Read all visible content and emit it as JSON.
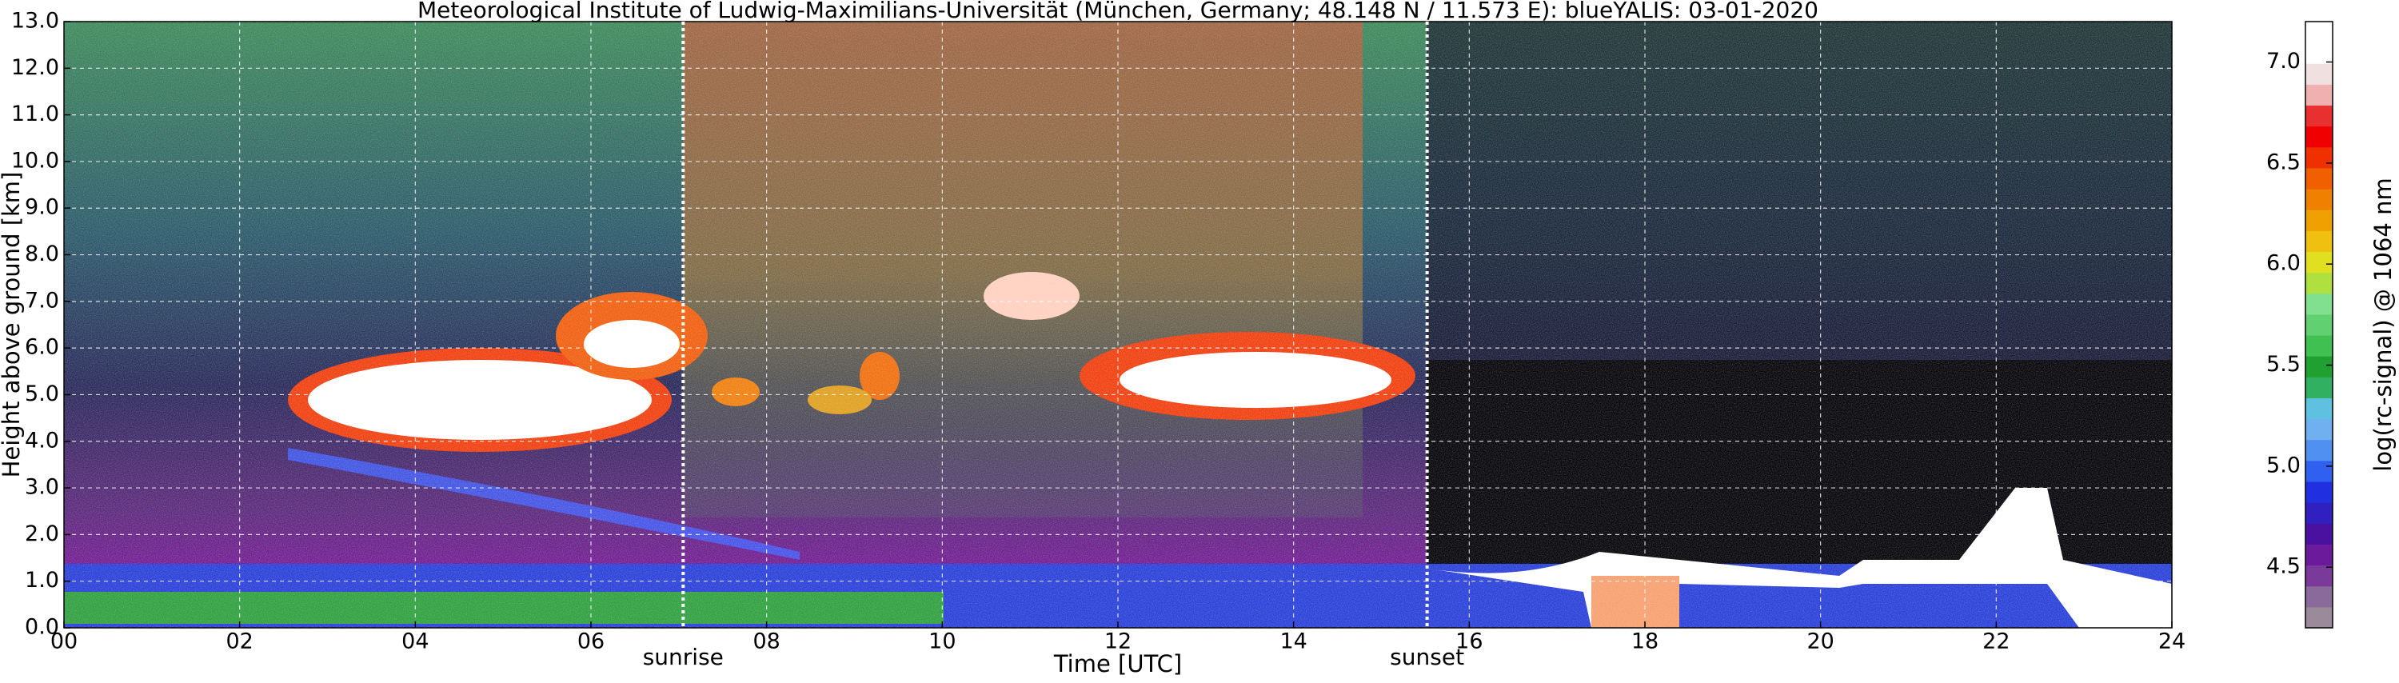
{
  "chart_data": {
    "type": "heatmap",
    "title": "Meteorological Institute of Ludwig-Maximilians-Universität (München, Germany; 48.148 N / 11.573 E):    blueYALIS: 03-01-2020",
    "xlabel": "Time [UTC]",
    "ylabel": "Height above ground [km]",
    "xlim": [
      0,
      24
    ],
    "xticks": [
      {
        "value": 0,
        "label": "00"
      },
      {
        "value": 2,
        "label": "02"
      },
      {
        "value": 4,
        "label": "04"
      },
      {
        "value": 6,
        "label": "06"
      },
      {
        "value": 8,
        "label": "08"
      },
      10,
      12,
      14,
      16,
      18,
      20,
      22,
      24
    ],
    "ylim": [
      0,
      13
    ],
    "yticks": [
      {
        "value": 0,
        "label": "0.0"
      },
      {
        "value": 1,
        "label": "1.0"
      },
      {
        "value": 2,
        "label": "2.0"
      },
      {
        "value": 3,
        "label": "3.0"
      },
      {
        "value": 4,
        "label": "4.0"
      },
      {
        "value": 5,
        "label": "5.0"
      },
      {
        "value": 6,
        "label": "6.0"
      },
      {
        "value": 7,
        "label": "7.0"
      },
      {
        "value": 8,
        "label": "8.0"
      },
      {
        "value": 9,
        "label": "9.0"
      },
      {
        "value": 10,
        "label": "10.0"
      },
      {
        "value": 11,
        "label": "11.0"
      },
      {
        "value": 12,
        "label": "12.0"
      },
      {
        "value": 13,
        "label": "13.0"
      }
    ],
    "grid": true,
    "annotations": [
      {
        "text": "sunrise",
        "x": 7.05
      },
      {
        "text": "sunset",
        "x": 15.52
      }
    ],
    "colorbar": {
      "label": "log(rc-signal) @ 1064 nm",
      "lim": [
        4.2,
        7.2
      ],
      "ticks": [
        4.5,
        {
          "value": 5.0,
          "label": "5.0"
        },
        5.5,
        {
          "value": 6.0,
          "label": "6.0"
        },
        6.5,
        {
          "value": 7.0,
          "label": "7.0"
        }
      ],
      "colors": [
        "#9a8a9a",
        "#8a6a9a",
        "#7a3a9a",
        "#6a1a9a",
        "#4a10a0",
        "#3020c0",
        "#2030e0",
        "#3060f0",
        "#5090f0",
        "#70b0f0",
        "#60c0e0",
        "#30b060",
        "#20a030",
        "#40c050",
        "#60d070",
        "#80e090",
        "#b0e040",
        "#e0e020",
        "#f0c010",
        "#f0a000",
        "#f08000",
        "#f06000",
        "#f03000",
        "#f00000",
        "#e83030",
        "#f0b0b0",
        "#f0e0e0",
        "#ffffff",
        "#ffffff"
      ]
    }
  }
}
